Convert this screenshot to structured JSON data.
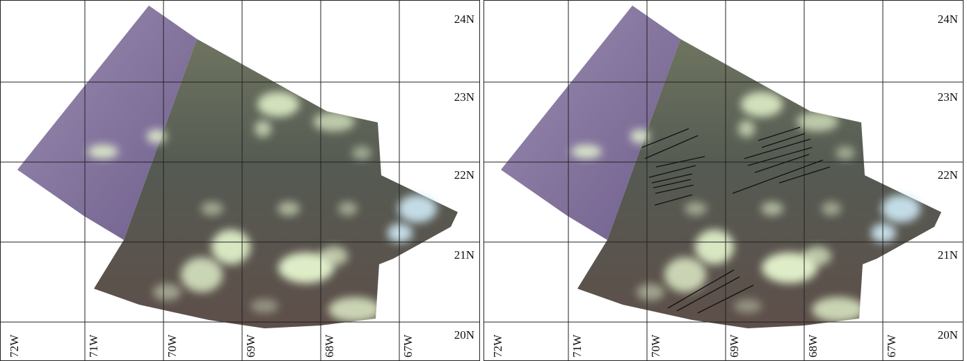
{
  "panels": [
    {
      "id": "left",
      "latitude_labels": [
        "24N",
        "23N",
        "22N",
        "21N",
        "20N"
      ],
      "longitude_labels": [
        "72W",
        "71W",
        "70W",
        "69W",
        "68W",
        "67W"
      ],
      "annotation_lines": false
    },
    {
      "id": "right",
      "latitude_labels": [
        "24N",
        "23N",
        "22N",
        "21N",
        "20N"
      ],
      "longitude_labels": [
        "72W",
        "71W",
        "70W",
        "69W",
        "68W",
        "67W"
      ],
      "annotation_lines": true
    }
  ],
  "colors": {
    "grid": "#222222",
    "imagery_purple": "#7d6a96",
    "imagery_dark": "#5b5a4c",
    "cloud": "#e6f6cf",
    "cloud_blue": "#cfeaf6",
    "annotation_line": "#111111"
  }
}
